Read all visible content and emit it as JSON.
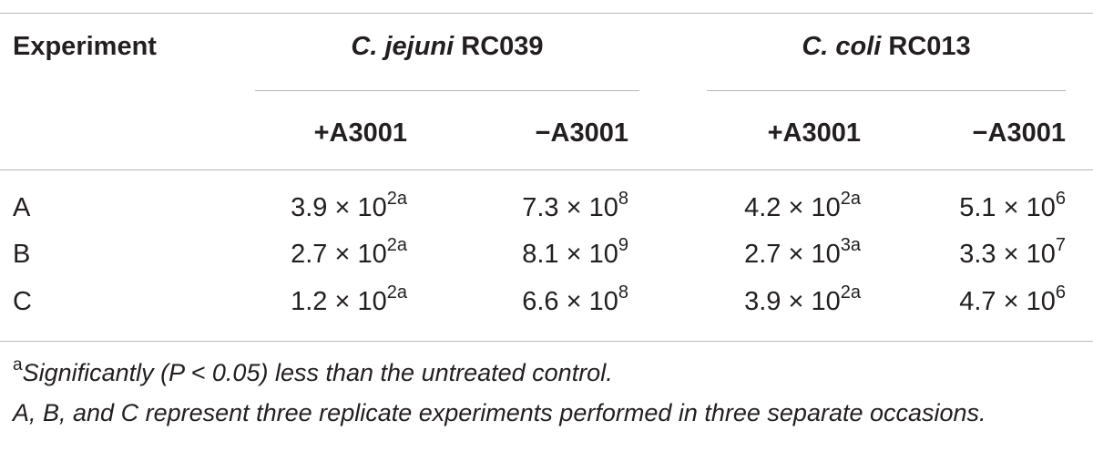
{
  "table": {
    "header": {
      "col0": "Experiment",
      "group1": {
        "species": "C. jejuni",
        "strain": "RC039"
      },
      "group2": {
        "species": "C. coli",
        "strain": "RC013"
      },
      "sub": [
        "+A3001",
        "−A3001",
        "+A3001",
        "−A3001"
      ]
    },
    "rows": [
      {
        "label": "A",
        "cells": [
          {
            "base": "3.9 × 10",
            "exp": "2a"
          },
          {
            "base": "7.3 × 10",
            "exp": "8"
          },
          {
            "base": "4.2 × 10",
            "exp": "2a"
          },
          {
            "base": "5.1 × 10",
            "exp": "6"
          }
        ]
      },
      {
        "label": "B",
        "cells": [
          {
            "base": "2.7 × 10",
            "exp": "2a"
          },
          {
            "base": "8.1 × 10",
            "exp": "9"
          },
          {
            "base": "2.7 × 10",
            "exp": "3a"
          },
          {
            "base": "3.3 × 10",
            "exp": "7"
          }
        ]
      },
      {
        "label": "C",
        "cells": [
          {
            "base": "1.2 × 10",
            "exp": "2a"
          },
          {
            "base": "6.6 × 10",
            "exp": "8"
          },
          {
            "base": "3.9 × 10",
            "exp": "2a"
          },
          {
            "base": "4.7 × 10",
            "exp": "6"
          }
        ]
      }
    ]
  },
  "footnotes": {
    "sig_marker": "a",
    "sig_text": "Significantly (P < 0.05) less than the untreated control.",
    "replicates": "A, B, and C represent three replicate experiments performed in three separate occasions."
  }
}
